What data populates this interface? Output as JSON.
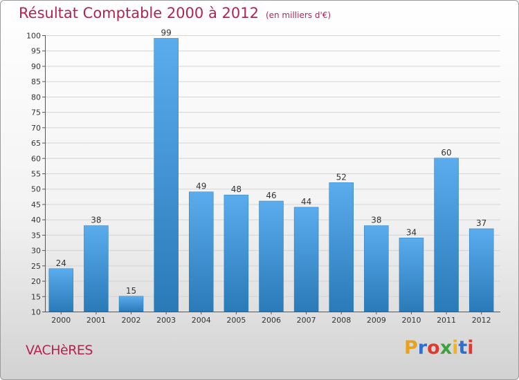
{
  "title": {
    "main": "Résultat Comptable 2000 à 2012",
    "unit": "(en milliers d'€)"
  },
  "place_name": "VACHèRES",
  "brand": {
    "letters": [
      "P",
      "r",
      "o",
      "x",
      "i",
      "t",
      "i"
    ],
    "colors": [
      "#e8a21c",
      "#2f6fd0",
      "#e03a2f",
      "#3aa33a",
      "#f0b21e",
      "#2f6fd0",
      "#e03a2f"
    ]
  },
  "colors": {
    "title": "#b22450",
    "bar_light": "#5aaced",
    "bar_dark": "#2a7ab8"
  },
  "chart_data": {
    "type": "bar",
    "categories": [
      "2000",
      "2001",
      "2002",
      "2003",
      "2004",
      "2005",
      "2006",
      "2007",
      "2008",
      "2009",
      "2010",
      "2011",
      "2012"
    ],
    "values": [
      24,
      38,
      15,
      99,
      49,
      48,
      46,
      44,
      52,
      38,
      34,
      60,
      37
    ],
    "ylim": [
      10,
      100
    ],
    "yticks": [
      10,
      15,
      20,
      25,
      30,
      35,
      40,
      45,
      50,
      55,
      60,
      65,
      70,
      75,
      80,
      85,
      90,
      95,
      100
    ],
    "grid": true
  }
}
